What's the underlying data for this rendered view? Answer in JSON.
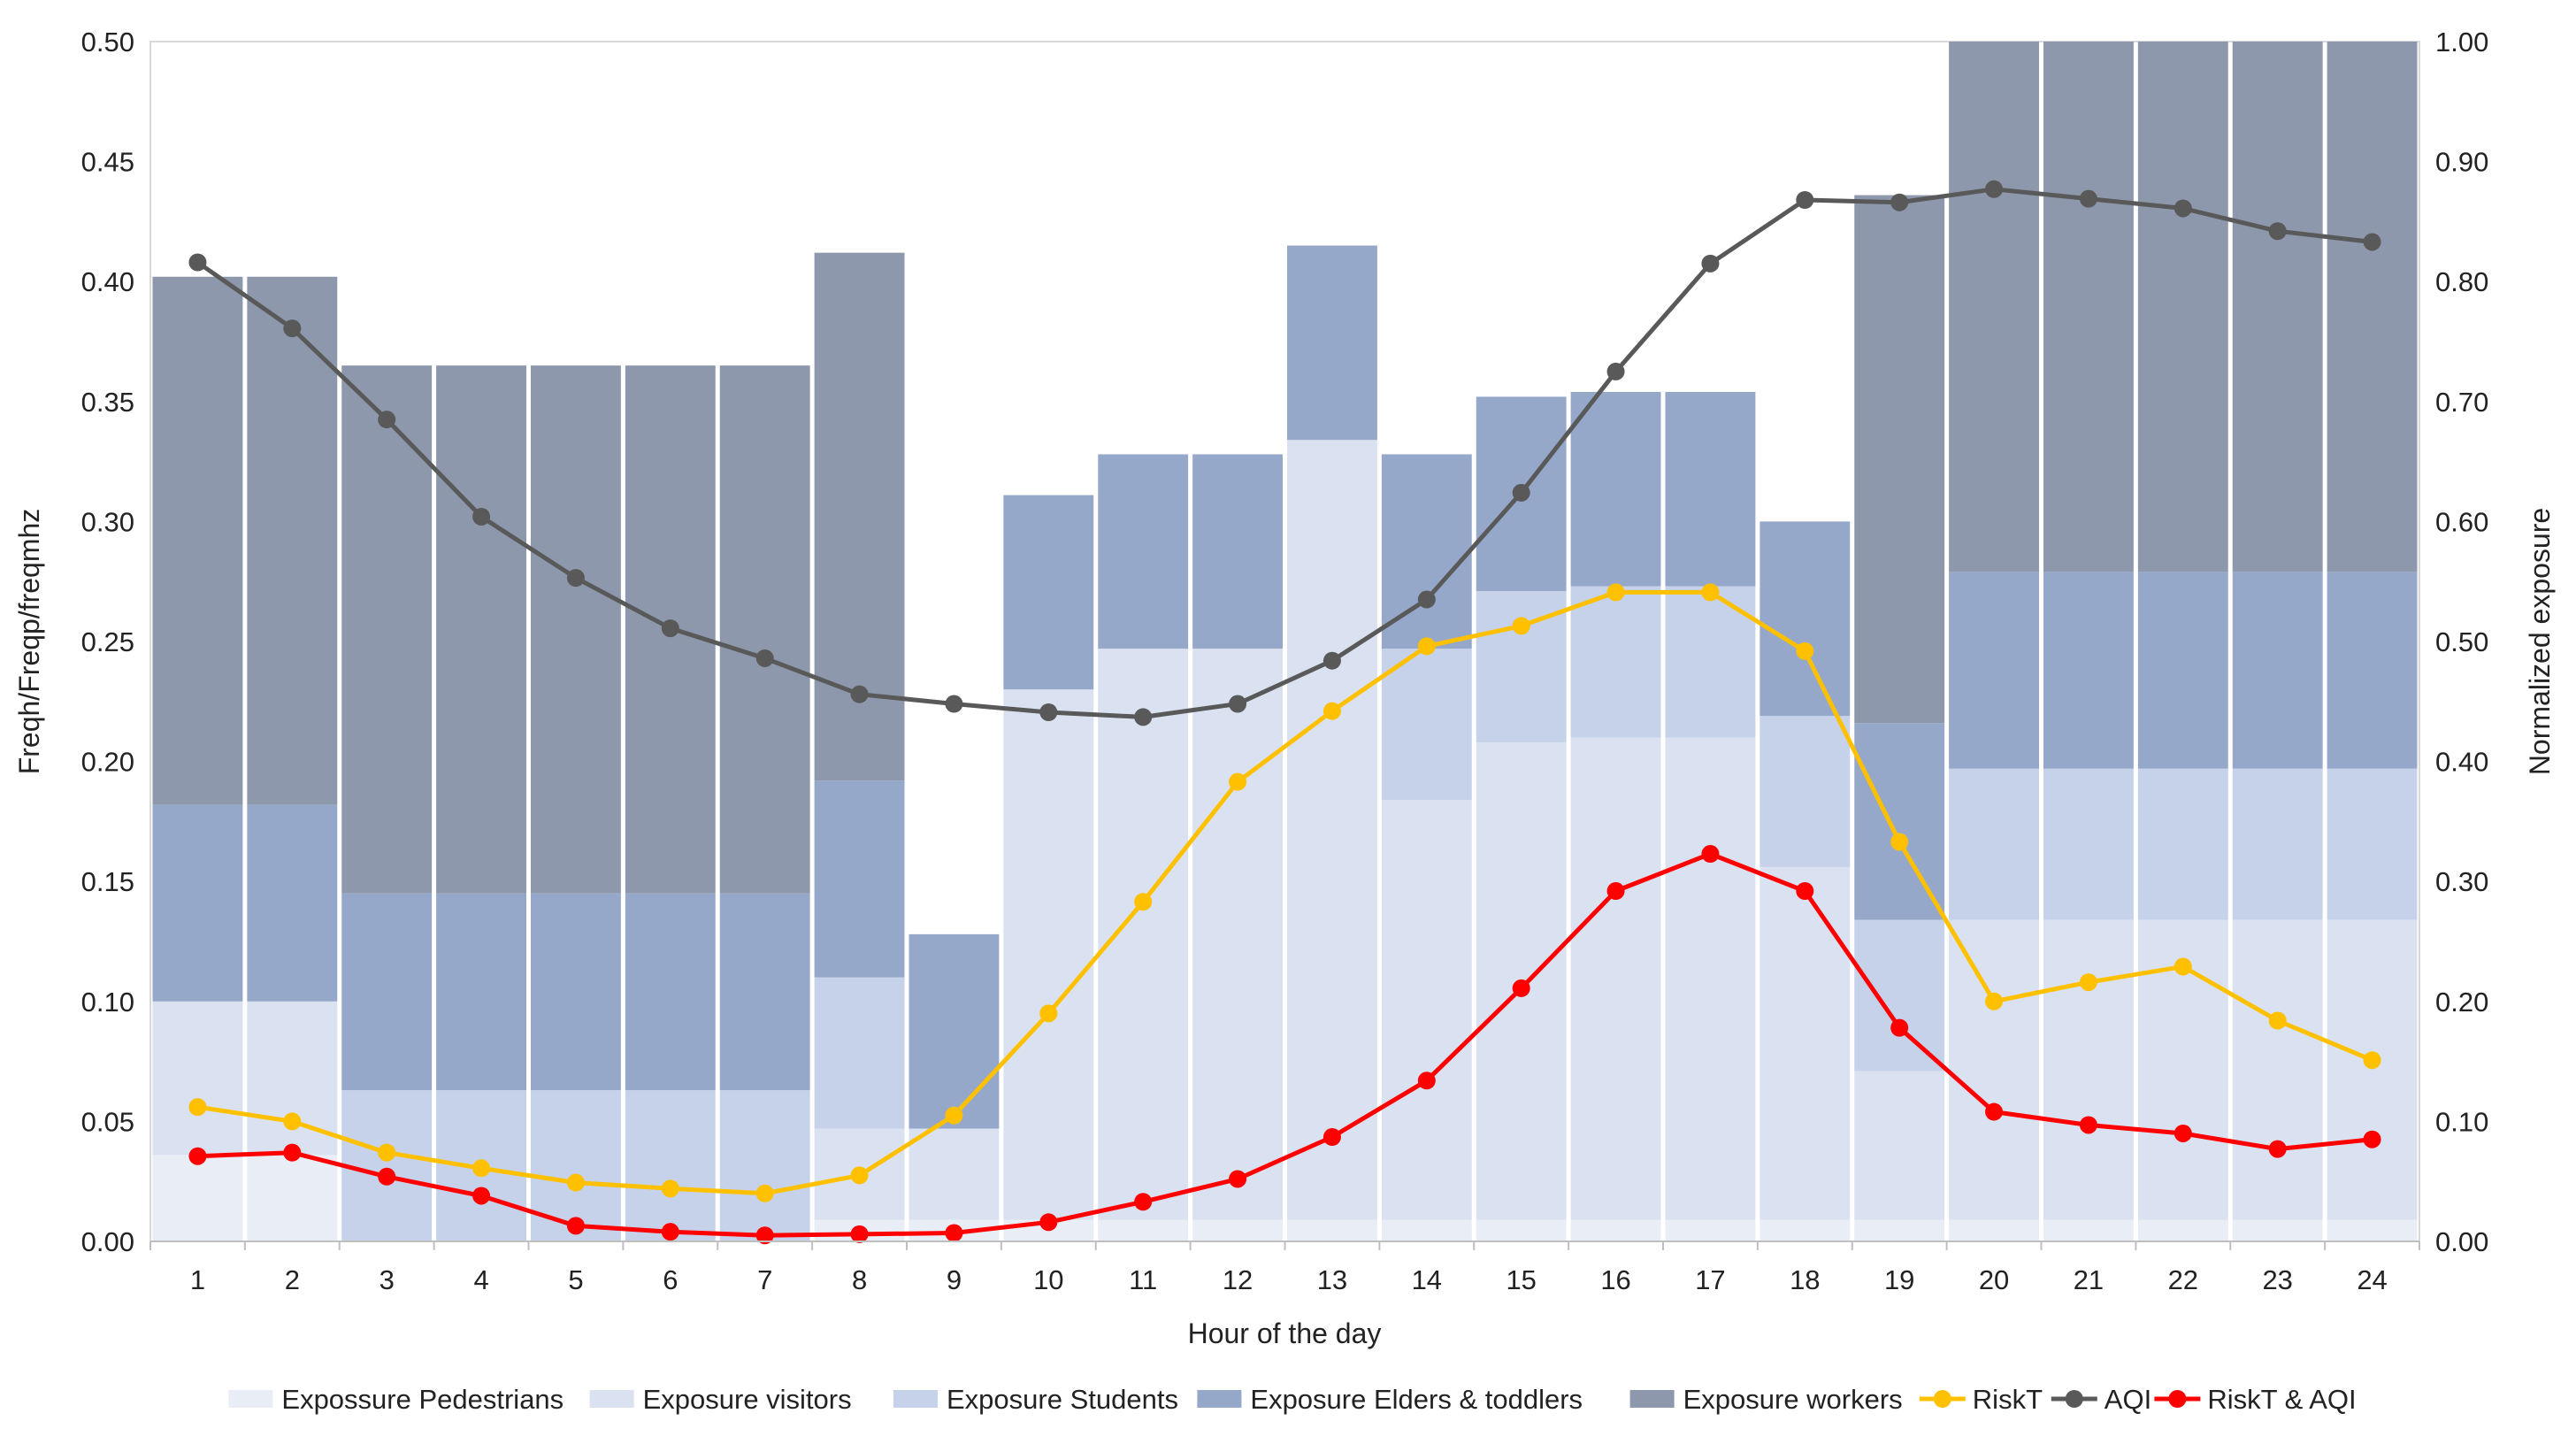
{
  "chart_data": {
    "type": "bar",
    "xlabel": "Hour of the day",
    "ylabel_left": "Freqh/Freqp/freqmhz",
    "ylabel_right": "Normalized exposure",
    "ylim_left": [
      0,
      0.5
    ],
    "ylim_right": [
      0,
      1.0
    ],
    "yticks_left": [
      "0.00",
      "0.05",
      "0.10",
      "0.15",
      "0.20",
      "0.25",
      "0.30",
      "0.35",
      "0.40",
      "0.45",
      "0.50"
    ],
    "yticks_right": [
      "0.00",
      "0.10",
      "0.20",
      "0.30",
      "0.40",
      "0.50",
      "0.60",
      "0.70",
      "0.80",
      "0.90",
      "1.00"
    ],
    "categories": [
      "1",
      "2",
      "3",
      "4",
      "5",
      "6",
      "7",
      "8",
      "9",
      "10",
      "11",
      "12",
      "13",
      "14",
      "15",
      "16",
      "17",
      "18",
      "19",
      "20",
      "21",
      "22",
      "23",
      "24"
    ],
    "stacked_series": [
      {
        "name": "Expossure Pedestrians",
        "color": "#e9edf6",
        "axis": "left",
        "values": [
          0.036,
          0.036,
          0,
          0,
          0,
          0,
          0,
          0.009,
          0.009,
          0.009,
          0.009,
          0.009,
          0.009,
          0.009,
          0.009,
          0.009,
          0.009,
          0.009,
          0.009,
          0.009,
          0.009,
          0.009,
          0.009,
          0.009
        ]
      },
      {
        "name": "Exposure visitors",
        "color": "#dae1f1",
        "axis": "left",
        "values": [
          0.064,
          0.064,
          0,
          0,
          0,
          0,
          0,
          0.038,
          0.038,
          0.221,
          0.238,
          0.238,
          0.325,
          0.175,
          0.199,
          0.201,
          0.201,
          0.147,
          0.062,
          0.125,
          0.125,
          0.125,
          0.125,
          0.125
        ]
      },
      {
        "name": "Exposure Students",
        "color": "#c5d2ea",
        "axis": "left",
        "values": [
          0,
          0,
          0.063,
          0.063,
          0.063,
          0.063,
          0.063,
          0.063,
          0,
          0,
          0,
          0,
          0,
          0.063,
          0.063,
          0.063,
          0.063,
          0.063,
          0.063,
          0.063,
          0.063,
          0.063,
          0.063,
          0.063
        ]
      },
      {
        "name": "Exposure Elders & toddlers",
        "color": "#96a8ca",
        "axis": "left",
        "values": [
          0.082,
          0.082,
          0.082,
          0.082,
          0.082,
          0.082,
          0.082,
          0.082,
          0.081,
          0.081,
          0.081,
          0.081,
          0.081,
          0.081,
          0.081,
          0.081,
          0.081,
          0.081,
          0.082,
          0.082,
          0.082,
          0.082,
          0.082,
          0.082
        ]
      },
      {
        "name": "Exposure workers",
        "color": "#8d98ac",
        "axis": "left",
        "values": [
          0.22,
          0.22,
          0.22,
          0.22,
          0.22,
          0.22,
          0.22,
          0.22,
          0,
          0,
          0,
          0,
          0,
          0,
          0,
          0,
          0,
          0,
          0.22,
          0.221,
          0.221,
          0.221,
          0.221,
          0.221
        ]
      }
    ],
    "line_series": [
      {
        "name": "RiskT",
        "color": "#ffc000",
        "axis": "right",
        "values": [
          0.112,
          0.1,
          0.074,
          0.061,
          0.049,
          0.044,
          0.04,
          0.055,
          0.105,
          0.19,
          0.283,
          0.383,
          0.442,
          0.496,
          0.513,
          0.541,
          0.541,
          0.492,
          0.333,
          0.2,
          0.216,
          0.229,
          0.184,
          0.151
        ]
      },
      {
        "name": "AQI",
        "color": "#595959",
        "axis": "right",
        "values": [
          0.816,
          0.761,
          0.685,
          0.604,
          0.553,
          0.511,
          0.486,
          0.456,
          0.448,
          0.441,
          0.437,
          0.448,
          0.484,
          0.535,
          0.624,
          0.725,
          0.815,
          0.868,
          0.866,
          0.877,
          0.869,
          0.861,
          0.842,
          0.833
        ]
      },
      {
        "name": "RiskT & AQI",
        "color": "#ff0000",
        "axis": "right",
        "values": [
          0.071,
          0.074,
          0.054,
          0.038,
          0.013,
          0.008,
          0.005,
          0.006,
          0.007,
          0.016,
          0.033,
          0.052,
          0.087,
          0.134,
          0.211,
          0.292,
          0.323,
          0.292,
          0.178,
          0.108,
          0.097,
          0.09,
          0.077,
          0.085
        ]
      }
    ],
    "legend_position": "bottom",
    "grid": false
  }
}
